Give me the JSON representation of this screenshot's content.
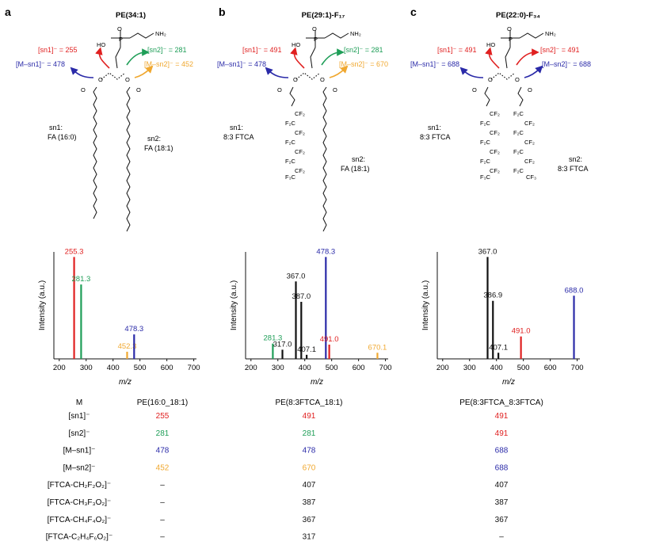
{
  "panels": [
    {
      "letter": "a",
      "title": "PE(34:1)",
      "head": "NH₂",
      "ion_sn1": "[sn1]⁻ = 255",
      "ion_sn2": "[sn2]⁻ = 281",
      "ion_msn1": "[M–sn1]⁻ = 478",
      "ion_msn2": "[M–sn2]⁻ = 452",
      "sn1_label": "sn1:",
      "sn1_chain": "FA (16:0)",
      "sn2_label": "sn2:",
      "sn2_chain": "FA (18:1)"
    },
    {
      "letter": "b",
      "title": "PE(29:1)-F₁₇",
      "head": "NH₂",
      "ion_sn1": "[sn1]⁻ = 491",
      "ion_sn2": "[sn2]⁻ = 281",
      "ion_msn1": "[M–sn1]⁻ = 478",
      "ion_msn2": "[M–sn2]⁻ = 670",
      "sn1_label": "sn1:",
      "sn1_chain": "8:3 FTCA",
      "sn2_label": "sn2:",
      "sn2_chain": "FA (18:1)"
    },
    {
      "letter": "c",
      "title": "PE(22:0)-F₃₄",
      "head": "NH₂",
      "ion_sn1": "[sn1]⁻ = 491",
      "ion_sn2": "[sn2]⁻ = 491",
      "ion_msn1": "[M–sn1]⁻ = 688",
      "ion_msn2": "[M–sn2]⁻ = 688",
      "sn1_label": "sn1:",
      "sn1_chain": "8:3 FTCA",
      "sn2_label": "sn2:",
      "sn2_chain": "8:3 FTCA"
    }
  ],
  "colors": {
    "sn1": "#e02020",
    "sn2": "#1f9e58",
    "msn1": "#2a2aa8",
    "msn2": "#f0a830",
    "other": "#111111"
  },
  "chart_data": [
    {
      "type": "bar",
      "title": "",
      "xlabel": "m/z",
      "ylabel": "Intensity (a.u.)",
      "xlim": [
        180,
        710
      ],
      "xticks": [
        200,
        300,
        400,
        500,
        600,
        700
      ],
      "ylim": [
        0,
        1.05
      ],
      "peaks": [
        {
          "mz": 255.3,
          "rel": 1.0,
          "label": "255.3",
          "role": "sn1"
        },
        {
          "mz": 281.3,
          "rel": 0.73,
          "label": "281.3",
          "role": "sn2"
        },
        {
          "mz": 452.3,
          "rel": 0.07,
          "label": "452.3",
          "role": "msn2"
        },
        {
          "mz": 478.3,
          "rel": 0.24,
          "label": "478.3",
          "role": "msn1"
        }
      ]
    },
    {
      "type": "bar",
      "title": "",
      "xlabel": "m/z",
      "ylabel": "Intensity (a.u.)",
      "xlim": [
        180,
        710
      ],
      "xticks": [
        200,
        300,
        400,
        500,
        600,
        700
      ],
      "ylim": [
        0,
        1.05
      ],
      "peaks": [
        {
          "mz": 281.3,
          "rel": 0.15,
          "label": "281.3",
          "role": "sn2"
        },
        {
          "mz": 317.0,
          "rel": 0.09,
          "label": "317.0",
          "role": "other"
        },
        {
          "mz": 367.0,
          "rel": 0.76,
          "label": "367.0",
          "role": "other"
        },
        {
          "mz": 387.0,
          "rel": 0.56,
          "label": "387.0",
          "role": "other"
        },
        {
          "mz": 407.1,
          "rel": 0.04,
          "label": "407.1",
          "role": "other"
        },
        {
          "mz": 478.3,
          "rel": 1.0,
          "label": "478.3",
          "role": "msn1"
        },
        {
          "mz": 491.0,
          "rel": 0.14,
          "label": "491.0",
          "role": "sn1"
        },
        {
          "mz": 670.1,
          "rel": 0.06,
          "label": "670.1",
          "role": "msn2"
        }
      ]
    },
    {
      "type": "bar",
      "title": "",
      "xlabel": "m/z",
      "ylabel": "Intensity (a.u.)",
      "xlim": [
        180,
        710
      ],
      "xticks": [
        200,
        300,
        400,
        500,
        600,
        700
      ],
      "ylim": [
        0,
        1.05
      ],
      "peaks": [
        {
          "mz": 367.0,
          "rel": 1.0,
          "label": "367.0",
          "role": "other"
        },
        {
          "mz": 386.9,
          "rel": 0.57,
          "label": "386.9",
          "role": "other"
        },
        {
          "mz": 407.1,
          "rel": 0.06,
          "label": "407.1",
          "role": "other"
        },
        {
          "mz": 491.0,
          "rel": 0.22,
          "label": "491.0",
          "role": "sn1"
        },
        {
          "mz": 688.0,
          "rel": 0.62,
          "label": "688.0",
          "role": "msn1"
        }
      ]
    }
  ],
  "table": {
    "header": {
      "label": "M",
      "cols": [
        "PE(16:0_18:1)",
        "PE(8:3FTCA_18:1)",
        "PE(8:3FTCA_8:3FTCA)"
      ]
    },
    "rows": [
      {
        "label": "[sn1]⁻",
        "role": "sn1",
        "values": [
          "255",
          "491",
          "491"
        ],
        "roles": [
          "sn1",
          "sn1",
          "sn1"
        ]
      },
      {
        "label": "[sn2]⁻",
        "role": "sn2",
        "values": [
          "281",
          "281",
          "491"
        ],
        "roles": [
          "sn2",
          "sn2",
          "sn1"
        ]
      },
      {
        "label": "[M–sn1]⁻",
        "role": "msn1",
        "values": [
          "478",
          "478",
          "688"
        ],
        "roles": [
          "msn1",
          "msn1",
          "msn1"
        ]
      },
      {
        "label": "[M–sn2]⁻",
        "role": "msn2",
        "values": [
          "452",
          "670",
          "688"
        ],
        "roles": [
          "msn2",
          "msn2",
          "msn1"
        ]
      },
      {
        "label": "[FTCA-CH₂F₂O₂]⁻",
        "role": "other",
        "values": [
          "–",
          "407",
          "407"
        ],
        "roles": [
          "other",
          "other",
          "other"
        ]
      },
      {
        "label": "[FTCA-CH₃F₃O₂]⁻",
        "role": "other",
        "values": [
          "–",
          "387",
          "387"
        ],
        "roles": [
          "other",
          "other",
          "other"
        ]
      },
      {
        "label": "[FTCA-CH₄F₄O₂]⁻",
        "role": "other",
        "values": [
          "–",
          "367",
          "367"
        ],
        "roles": [
          "other",
          "other",
          "other"
        ]
      },
      {
        "label": "[FTCA-C₂H₄F₆O₂]⁻",
        "role": "other",
        "values": [
          "–",
          "317",
          "–"
        ],
        "roles": [
          "other",
          "other",
          "other"
        ]
      }
    ]
  }
}
